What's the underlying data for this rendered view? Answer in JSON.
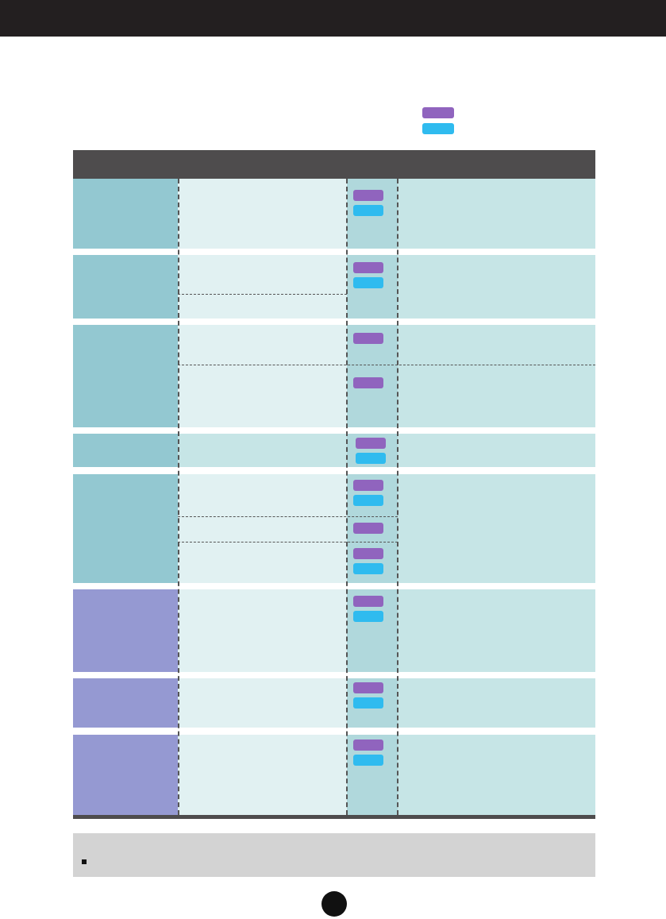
{
  "page": {
    "background": "#ffffff",
    "top_bar_color": "#231f20"
  },
  "legend": {
    "items": [
      {
        "color": "#9064be"
      },
      {
        "color": "#2fbbef"
      }
    ]
  },
  "table": {
    "header_color": "#4e4c4d",
    "group_colors": {
      "teal": "#93c8d1",
      "violet": "#9599d2"
    },
    "chip_colors": {
      "purple": "#9064be",
      "blue": "#2fbbef"
    }
  },
  "note": {
    "background": "#d3d3d3"
  }
}
